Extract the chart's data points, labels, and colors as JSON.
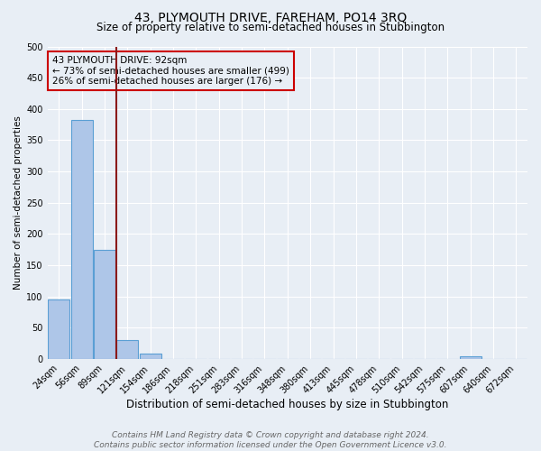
{
  "title": "43, PLYMOUTH DRIVE, FAREHAM, PO14 3RQ",
  "subtitle": "Size of property relative to semi-detached houses in Stubbington",
  "xlabel": "Distribution of semi-detached houses by size in Stubbington",
  "ylabel_text": "Number of semi-detached properties",
  "footer_line1": "Contains HM Land Registry data © Crown copyright and database right 2024.",
  "footer_line2": "Contains public sector information licensed under the Open Government Licence v3.0.",
  "categories": [
    "24sqm",
    "56sqm",
    "89sqm",
    "121sqm",
    "154sqm",
    "186sqm",
    "218sqm",
    "251sqm",
    "283sqm",
    "316sqm",
    "348sqm",
    "380sqm",
    "413sqm",
    "445sqm",
    "478sqm",
    "510sqm",
    "542sqm",
    "575sqm",
    "607sqm",
    "640sqm",
    "672sqm"
  ],
  "values": [
    95,
    383,
    175,
    30,
    9,
    0,
    0,
    0,
    0,
    0,
    0,
    0,
    0,
    0,
    0,
    0,
    0,
    0,
    5,
    0,
    0
  ],
  "bar_color": "#aec6e8",
  "bar_edge_color": "#5a9fd4",
  "background_color": "#e8eef5",
  "grid_color": "#ffffff",
  "vline_color": "#8b1a1a",
  "annotation_line1": "43 PLYMOUTH DRIVE: 92sqm",
  "annotation_line2": "← 73% of semi-detached houses are smaller (499)",
  "annotation_line3": "26% of semi-detached houses are larger (176) →",
  "annotation_box_edge_color": "#cc0000",
  "annotation_fontsize": 7.5,
  "ylim": [
    0,
    500
  ],
  "yticks": [
    0,
    50,
    100,
    150,
    200,
    250,
    300,
    350,
    400,
    450,
    500
  ],
  "title_fontsize": 10,
  "subtitle_fontsize": 8.5,
  "xlabel_fontsize": 8.5,
  "ylabel_fontsize": 7.5,
  "tick_fontsize": 7,
  "footer_fontsize": 6.5
}
